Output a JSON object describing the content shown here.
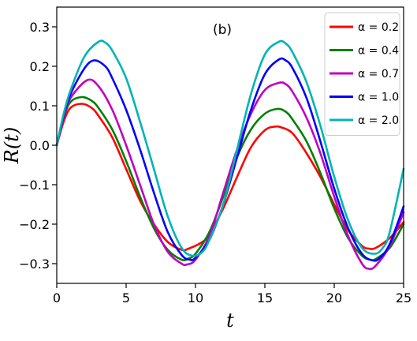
{
  "chart_data": {
    "type": "line",
    "title": "",
    "annotation": "(b)",
    "xlabel": "t",
    "ylabel": "R(t)",
    "xlim": [
      0,
      25
    ],
    "ylim": [
      -0.35,
      0.35
    ],
    "xticks": [
      0,
      5,
      10,
      15,
      20,
      25
    ],
    "xtick_labels": [
      "0",
      "5",
      "10",
      "15",
      "20",
      "25"
    ],
    "yticks": [
      -0.3,
      -0.2,
      -0.1,
      0.0,
      0.1,
      0.2,
      0.3
    ],
    "ytick_labels": [
      "−0.3",
      "−0.2",
      "−0.1",
      "0.0",
      "0.1",
      "0.2",
      "0.3"
    ],
    "grid": false,
    "legend_position": "top-right",
    "series": [
      {
        "name": "α = 0.2",
        "color": "#ff0000",
        "points": [
          [
            0,
            0
          ],
          [
            0.5,
            0.06
          ],
          [
            1,
            0.095
          ],
          [
            1.8,
            0.105
          ],
          [
            2.5,
            0.095
          ],
          [
            3,
            0.075
          ],
          [
            4,
            0.02
          ],
          [
            5,
            -0.06
          ],
          [
            6,
            -0.14
          ],
          [
            7,
            -0.2
          ],
          [
            8,
            -0.245
          ],
          [
            9,
            -0.265
          ],
          [
            9.5,
            -0.262
          ],
          [
            10.5,
            -0.245
          ],
          [
            11,
            -0.225
          ],
          [
            12,
            -0.16
          ],
          [
            13,
            -0.08
          ],
          [
            14,
            -0.005
          ],
          [
            15,
            0.038
          ],
          [
            15.7,
            0.047
          ],
          [
            16.2,
            0.045
          ],
          [
            17,
            0.03
          ],
          [
            18,
            -0.02
          ],
          [
            19,
            -0.08
          ],
          [
            20,
            -0.15
          ],
          [
            21,
            -0.215
          ],
          [
            22,
            -0.255
          ],
          [
            22.5,
            -0.262
          ],
          [
            23,
            -0.26
          ],
          [
            24,
            -0.235
          ],
          [
            25,
            -0.195
          ]
        ]
      },
      {
        "name": "α = 0.4",
        "color": "#008000",
        "points": [
          [
            0,
            0
          ],
          [
            0.5,
            0.07
          ],
          [
            1,
            0.11
          ],
          [
            1.8,
            0.122
          ],
          [
            2.5,
            0.113
          ],
          [
            3,
            0.095
          ],
          [
            4,
            0.04
          ],
          [
            5,
            -0.04
          ],
          [
            6,
            -0.13
          ],
          [
            7,
            -0.21
          ],
          [
            8,
            -0.265
          ],
          [
            9,
            -0.29
          ],
          [
            9.5,
            -0.287
          ],
          [
            10,
            -0.275
          ],
          [
            11,
            -0.22
          ],
          [
            12,
            -0.13
          ],
          [
            13,
            -0.03
          ],
          [
            14,
            0.04
          ],
          [
            15,
            0.08
          ],
          [
            15.9,
            0.092
          ],
          [
            16.5,
            0.085
          ],
          [
            17,
            0.065
          ],
          [
            18,
            0.01
          ],
          [
            19,
            -0.07
          ],
          [
            20,
            -0.16
          ],
          [
            21,
            -0.235
          ],
          [
            22,
            -0.28
          ],
          [
            22.6,
            -0.29
          ],
          [
            23,
            -0.288
          ],
          [
            24,
            -0.26
          ],
          [
            25,
            -0.2
          ]
        ]
      },
      {
        "name": "α = 0.7",
        "color": "#c000c0",
        "points": [
          [
            0,
            0
          ],
          [
            0.5,
            0.07
          ],
          [
            1,
            0.12
          ],
          [
            2.2,
            0.165
          ],
          [
            3,
            0.15
          ],
          [
            4,
            0.09
          ],
          [
            5,
            0.0
          ],
          [
            6,
            -0.1
          ],
          [
            7,
            -0.2
          ],
          [
            8,
            -0.27
          ],
          [
            9,
            -0.3
          ],
          [
            9.4,
            -0.302
          ],
          [
            10,
            -0.29
          ],
          [
            11,
            -0.23
          ],
          [
            12,
            -0.12
          ],
          [
            13,
            -0.01
          ],
          [
            14,
            0.08
          ],
          [
            15,
            0.14
          ],
          [
            16,
            0.158
          ],
          [
            16.5,
            0.155
          ],
          [
            17,
            0.135
          ],
          [
            18,
            0.07
          ],
          [
            19,
            -0.02
          ],
          [
            20,
            -0.13
          ],
          [
            21,
            -0.23
          ],
          [
            22,
            -0.3
          ],
          [
            22.5,
            -0.313
          ],
          [
            23,
            -0.305
          ],
          [
            24,
            -0.255
          ],
          [
            25,
            -0.17
          ]
        ]
      },
      {
        "name": "α = 1.0",
        "color": "#0000ff",
        "points": [
          [
            0,
            0
          ],
          [
            0.5,
            0.075
          ],
          [
            1,
            0.13
          ],
          [
            2,
            0.195
          ],
          [
            2.7,
            0.215
          ],
          [
            3.5,
            0.2
          ],
          [
            4,
            0.17
          ],
          [
            5,
            0.09
          ],
          [
            6,
            -0.01
          ],
          [
            7,
            -0.12
          ],
          [
            8,
            -0.22
          ],
          [
            9,
            -0.278
          ],
          [
            9.6,
            -0.29
          ],
          [
            10,
            -0.285
          ],
          [
            11,
            -0.24
          ],
          [
            12,
            -0.15
          ],
          [
            13,
            -0.03
          ],
          [
            14,
            0.09
          ],
          [
            15,
            0.18
          ],
          [
            16,
            0.217
          ],
          [
            16.5,
            0.215
          ],
          [
            17,
            0.195
          ],
          [
            18,
            0.12
          ],
          [
            19,
            0.01
          ],
          [
            20,
            -0.11
          ],
          [
            21,
            -0.21
          ],
          [
            22,
            -0.275
          ],
          [
            22.8,
            -0.292
          ],
          [
            23.3,
            -0.285
          ],
          [
            24,
            -0.25
          ],
          [
            25,
            -0.155
          ]
        ]
      },
      {
        "name": "α = 2.0",
        "color": "#00b4b4",
        "points": [
          [
            0,
            0
          ],
          [
            0.5,
            0.08
          ],
          [
            1,
            0.14
          ],
          [
            2,
            0.225
          ],
          [
            3,
            0.262
          ],
          [
            3.5,
            0.26
          ],
          [
            4,
            0.24
          ],
          [
            5,
            0.17
          ],
          [
            6,
            0.06
          ],
          [
            7,
            -0.06
          ],
          [
            8,
            -0.18
          ],
          [
            9,
            -0.26
          ],
          [
            9.8,
            -0.28
          ],
          [
            10.5,
            -0.27
          ],
          [
            11,
            -0.24
          ],
          [
            12,
            -0.15
          ],
          [
            13,
            -0.01
          ],
          [
            14,
            0.13
          ],
          [
            15,
            0.23
          ],
          [
            16,
            0.262
          ],
          [
            16.5,
            0.258
          ],
          [
            17,
            0.235
          ],
          [
            18,
            0.16
          ],
          [
            19,
            0.05
          ],
          [
            20,
            -0.08
          ],
          [
            21,
            -0.19
          ],
          [
            22,
            -0.26
          ],
          [
            22.9,
            -0.275
          ],
          [
            23.5,
            -0.26
          ],
          [
            24,
            -0.22
          ],
          [
            25,
            -0.06
          ]
        ]
      }
    ]
  }
}
